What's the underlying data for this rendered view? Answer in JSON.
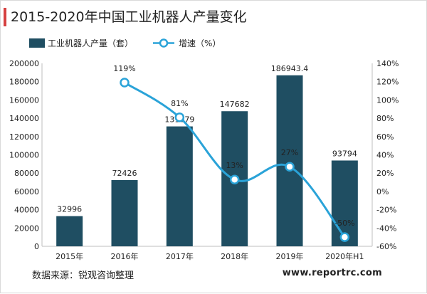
{
  "title": "2015-2020年中国工业机器人产量变化",
  "source": "数据来源：锐观咨询整理",
  "website": "www.reportrc.com",
  "colors": {
    "accent": "#d64141",
    "bar": "#1f4e62",
    "line": "#2aa3d8"
  },
  "chart_data": {
    "type": "bar",
    "categories": [
      "2015年",
      "2016年",
      "2017年",
      "2018年",
      "2019年",
      "2020年H1"
    ],
    "series": [
      {
        "name": "工业机器人产量（套）",
        "type": "bar",
        "axis": "left",
        "values": [
          32996,
          72426,
          131079,
          147682,
          186943.4,
          93794
        ],
        "labels": [
          "32996",
          "72426",
          "131079",
          "147682",
          "186943.4",
          "93794"
        ]
      },
      {
        "name": "增速（%）",
        "type": "line",
        "axis": "right",
        "values": [
          null,
          119,
          81,
          13,
          27,
          -50
        ],
        "labels": [
          "",
          "119%",
          "81%",
          "13%",
          "27%",
          "-50%"
        ]
      }
    ],
    "y_left": {
      "min": 0,
      "max": 200000,
      "ticks": [
        "0",
        "20000",
        "40000",
        "60000",
        "80000",
        "100000",
        "120000",
        "140000",
        "160000",
        "180000",
        "200000"
      ]
    },
    "y_right": {
      "min": -60,
      "max": 140,
      "ticks": [
        "-60%",
        "-40%",
        "-20%",
        "0%",
        "20%",
        "40%",
        "60%",
        "80%",
        "100%",
        "120%",
        "140%"
      ]
    },
    "grid": false,
    "legend": "top-left"
  }
}
